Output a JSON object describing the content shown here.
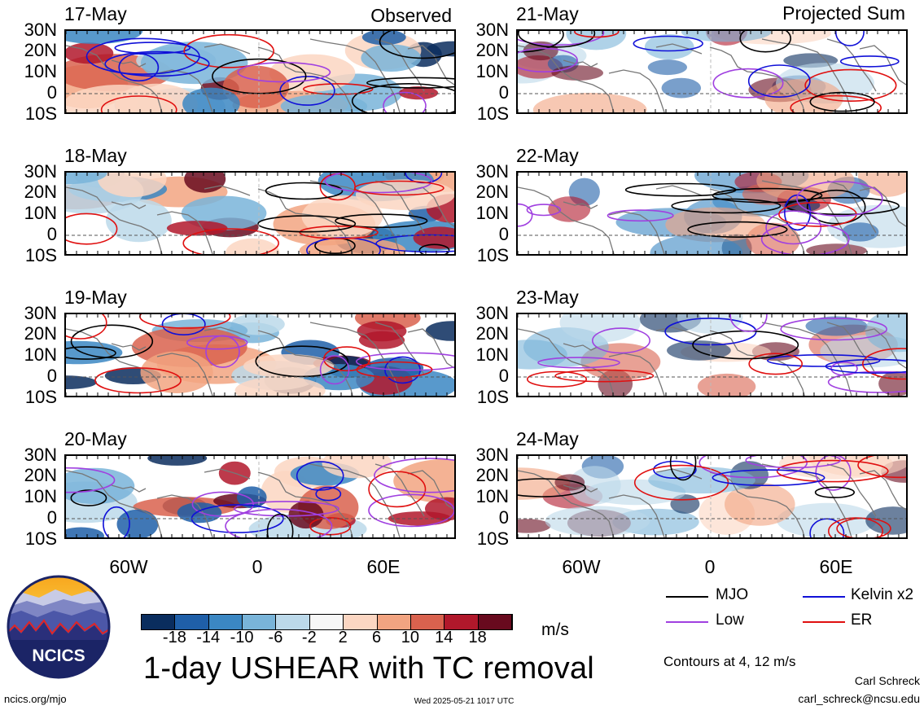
{
  "columns": {
    "left_title": "Observed",
    "right_title": "Projected Sum"
  },
  "panels": [
    {
      "date": "17-May",
      "column": "left"
    },
    {
      "date": "18-May",
      "column": "left"
    },
    {
      "date": "19-May",
      "column": "left"
    },
    {
      "date": "20-May",
      "column": "left"
    },
    {
      "date": "21-May",
      "column": "right"
    },
    {
      "date": "22-May",
      "column": "right"
    },
    {
      "date": "23-May",
      "column": "right"
    },
    {
      "date": "24-May",
      "column": "right"
    }
  ],
  "lat_labels": [
    "30N",
    "20N",
    "10N",
    "0",
    "10S"
  ],
  "lon_labels": [
    "60W",
    "0",
    "60E"
  ],
  "colorbar": {
    "colors": [
      "#0a2d5e",
      "#1f5fa8",
      "#3b87c3",
      "#79b4d9",
      "#bcd9ea",
      "#f7f7f7",
      "#fbd6c2",
      "#f2a481",
      "#d9624e",
      "#b1182b",
      "#680a1e"
    ],
    "labels": [
      "-18",
      "-14",
      "-10",
      "-6",
      "-2",
      "2",
      "6",
      "10",
      "14",
      "18"
    ],
    "unit": "m/s"
  },
  "legend": {
    "items": [
      {
        "label": "MJO",
        "color": "#000000"
      },
      {
        "label": "Kelvin x2",
        "color": "#1010d8"
      },
      {
        "label": "Low",
        "color": "#a040e0"
      },
      {
        "label": "ER",
        "color": "#e01010"
      }
    ],
    "contours_note": "Contours at 4, 12 m/s"
  },
  "title": "1-day USHEAR with TC removal",
  "logo_text": "NCICS",
  "footer": {
    "url": "ncics.org/mjo",
    "timestamp": "Wed 2025-05-21 1017 UTC",
    "author": "Carl Schreck",
    "email": "carl_schreck@ncsu.edu"
  }
}
